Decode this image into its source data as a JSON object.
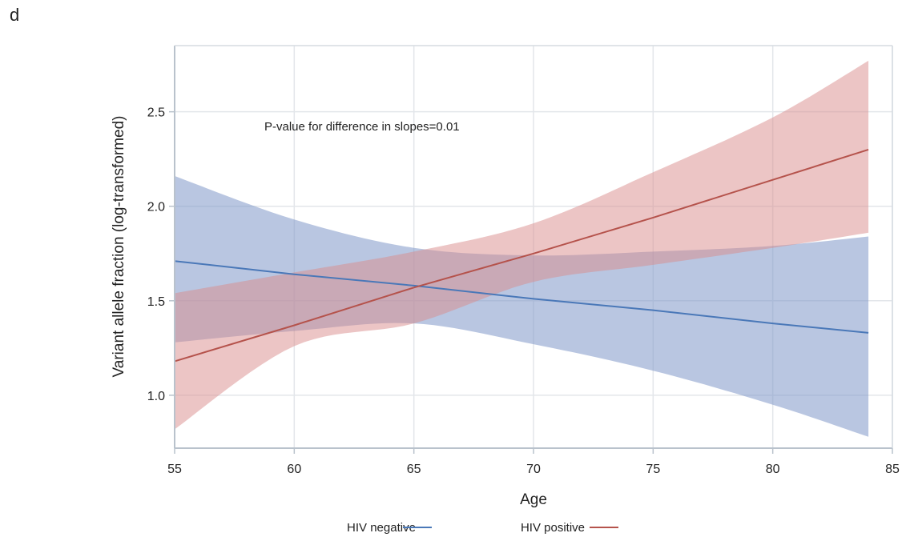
{
  "panel_label": "d",
  "chart_data": {
    "type": "line",
    "xlabel": "Age",
    "ylabel": "Variant allele fraction (log-transformed)",
    "xlim": [
      55,
      85
    ],
    "ylim": [
      0.72,
      2.85
    ],
    "x_ticks": [
      55,
      60,
      65,
      70,
      75,
      80,
      85
    ],
    "y_ticks": [
      1.0,
      1.5,
      2.0,
      2.5
    ],
    "y_tick_labels": [
      "1.0",
      "1.5",
      "2.0",
      "2.5"
    ],
    "grid": true,
    "annotation": "P-value for difference in slopes=0.01",
    "legend_position": "bottom",
    "series": [
      {
        "name": "HIV negative",
        "color": "#4a78b8",
        "band_color": "#7f98c8",
        "x": [
          55,
          60,
          65,
          70,
          75,
          80,
          84
        ],
        "y": [
          1.71,
          1.64,
          1.58,
          1.51,
          1.45,
          1.38,
          1.33
        ],
        "ci_lower": [
          1.28,
          1.34,
          1.38,
          1.27,
          1.13,
          0.95,
          0.78
        ],
        "ci_upper": [
          2.16,
          1.93,
          1.78,
          1.74,
          1.76,
          1.79,
          1.84
        ]
      },
      {
        "name": "HIV positive",
        "color": "#b5534c",
        "band_color": "#d98b8b",
        "x": [
          55,
          60,
          65,
          70,
          75,
          80,
          84
        ],
        "y": [
          1.18,
          1.37,
          1.57,
          1.75,
          1.94,
          2.14,
          2.3
        ],
        "ci_lower": [
          0.82,
          1.26,
          1.38,
          1.6,
          1.69,
          1.78,
          1.86
        ],
        "ci_upper": [
          1.54,
          1.65,
          1.76,
          1.91,
          2.18,
          2.47,
          2.77
        ]
      }
    ]
  }
}
